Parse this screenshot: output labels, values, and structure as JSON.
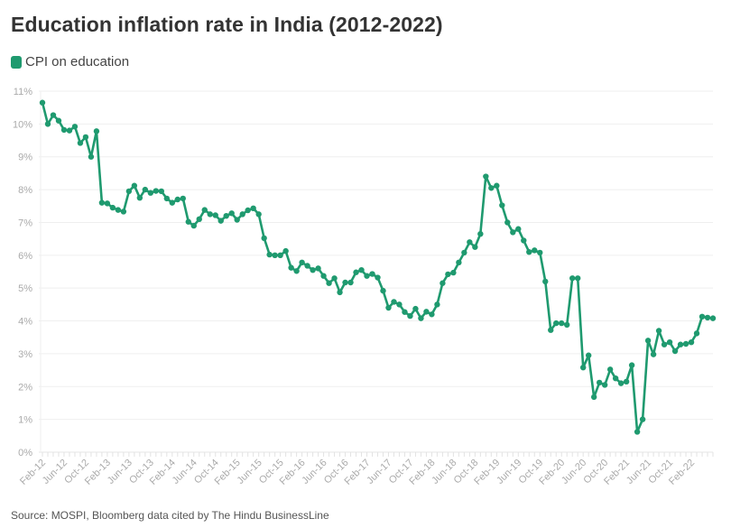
{
  "title": "Education inflation rate in India (2012-2022)",
  "source": "Source: MOSPI, Bloomberg data cited by The Hindu BusinessLine",
  "legend": [
    {
      "label": "CPI on education",
      "color": "#1f9a6f"
    }
  ],
  "chart_data": {
    "type": "line",
    "title": "Education inflation rate in India (2012-2022)",
    "xlabel": "",
    "ylabel": "",
    "ylim": [
      0,
      11
    ],
    "y_ticks": [
      "0%",
      "1%",
      "2%",
      "3%",
      "4%",
      "5%",
      "6%",
      "7%",
      "8%",
      "9%",
      "10%",
      "11%"
    ],
    "x_tick_labels": [
      "Feb-12",
      "Jun-12",
      "Oct-12",
      "Feb-13",
      "Jun-13",
      "Oct-13",
      "Feb-14",
      "Jun-14",
      "Oct-14",
      "Feb-15",
      "Jun-15",
      "Oct-15",
      "Feb-16",
      "Jun-16",
      "Oct-16",
      "Feb-17",
      "Jun-17",
      "Oct-17",
      "Feb-18",
      "Jun-18",
      "Oct-18",
      "Feb-19",
      "Jun-19",
      "Oct-19",
      "Feb-20",
      "Jun-20",
      "Oct-20",
      "Feb-21",
      "Jun-21",
      "Oct-21",
      "Feb-22"
    ],
    "x_start": "Feb-12",
    "x_end": "Jun-22",
    "grid": true,
    "legend_position": "top-left",
    "series": [
      {
        "name": "CPI on education",
        "color": "#1f9a6f",
        "values": [
          10.65,
          10.0,
          10.27,
          10.1,
          9.82,
          9.8,
          9.92,
          9.42,
          9.6,
          9.0,
          9.78,
          7.6,
          7.58,
          7.45,
          7.38,
          7.33,
          7.95,
          8.12,
          7.75,
          8.0,
          7.9,
          7.96,
          7.95,
          7.73,
          7.6,
          7.7,
          7.73,
          7.02,
          6.9,
          7.1,
          7.38,
          7.25,
          7.22,
          7.05,
          7.2,
          7.28,
          7.08,
          7.25,
          7.37,
          7.43,
          7.25,
          6.52,
          6.02,
          6.0,
          6.0,
          6.13,
          5.62,
          5.52,
          5.78,
          5.68,
          5.55,
          5.6,
          5.37,
          5.15,
          5.3,
          4.87,
          5.17,
          5.17,
          5.48,
          5.55,
          5.37,
          5.43,
          5.32,
          4.92,
          4.4,
          4.58,
          4.5,
          4.27,
          4.15,
          4.37,
          4.08,
          4.28,
          4.2,
          4.5,
          5.15,
          5.42,
          5.47,
          5.78,
          6.08,
          6.4,
          6.25,
          6.65,
          8.4,
          8.05,
          8.12,
          7.52,
          7.0,
          6.7,
          6.8,
          6.45,
          6.1,
          6.15,
          6.08,
          5.2,
          3.72,
          3.93,
          3.93,
          3.88,
          5.3,
          5.3,
          2.58,
          2.95,
          1.68,
          2.12,
          2.05,
          2.52,
          2.25,
          2.1,
          2.15,
          2.65,
          0.62,
          1.0,
          3.4,
          2.98,
          3.7,
          3.28,
          3.35,
          3.08,
          3.28,
          3.3,
          3.35,
          3.62,
          4.13,
          4.1,
          4.08
        ]
      }
    ]
  }
}
